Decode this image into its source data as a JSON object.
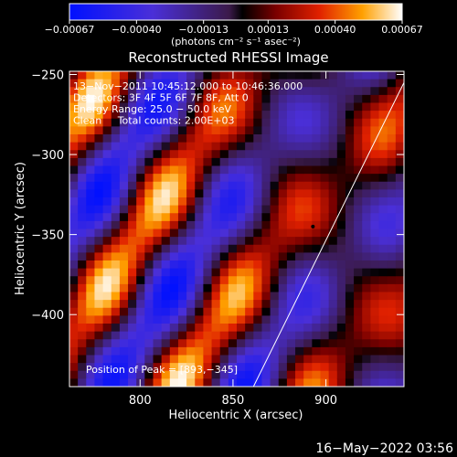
{
  "chart_data": {
    "type": "heatmap",
    "title": "Reconstructed RHESSI Image",
    "xlabel": "Heliocentric X (arcsec)",
    "ylabel": "Heliocentric Y (arcsec)",
    "xlim": [
      762,
      942
    ],
    "ylim": [
      -445,
      -248
    ],
    "x_ticks": [
      {
        "value": 800,
        "label": "800"
      },
      {
        "value": 850,
        "label": "850"
      },
      {
        "value": 900,
        "label": "900"
      }
    ],
    "y_ticks": [
      {
        "value": -250,
        "label": "−250"
      },
      {
        "value": -300,
        "label": "−300"
      },
      {
        "value": -350,
        "label": "−350"
      },
      {
        "value": -400,
        "label": "−400"
      }
    ],
    "colorbar": {
      "min": -0.00067,
      "max": 0.00067,
      "ticks": [
        {
          "value": -0.00067,
          "label": "−0.00067"
        },
        {
          "value": -0.0004,
          "label": "−0.00040"
        },
        {
          "value": -0.00013,
          "label": "−0.00013"
        },
        {
          "value": 0.00013,
          "label": "0.00013"
        },
        {
          "value": 0.0004,
          "label": "0.00040"
        },
        {
          "value": 0.00067,
          "label": "0.00067"
        }
      ],
      "unit_label": "(photons cm⁻² s⁻¹ asec⁻²)"
    },
    "annotations": [
      "13−Nov−2011 10:45:12.000 to 10:46:36.000",
      "Detectors: 3F 4F 5F 6F 7F 8F, Att 0",
      "Energy Range: 25.0 − 50.0 keV",
      "Clean     Total counts: 2.00E+03"
    ],
    "peak_label": "Position of Peak = [893,−345]",
    "peak": {
      "x": 893,
      "y": -345
    },
    "limb_line": [
      [
        861,
        -445
      ],
      [
        945,
        -248
      ]
    ]
  },
  "footer": {
    "timestamp": "16−May−2022 03:56"
  },
  "colors": {
    "background": "#000000",
    "text": "#ffffff"
  }
}
